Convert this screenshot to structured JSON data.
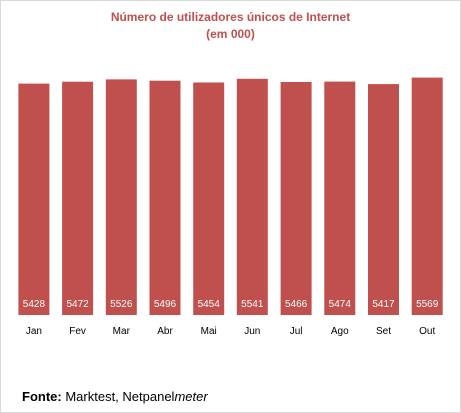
{
  "chart_data": {
    "type": "bar",
    "title": "Número de utilizadores únicos de Internet",
    "subtitle": "(em 000)",
    "categories": [
      "Jan",
      "Fev",
      "Mar",
      "Abr",
      "Mai",
      "Jun",
      "Jul",
      "Ago",
      "Set",
      "Out"
    ],
    "values": [
      5428,
      5472,
      5526,
      5496,
      5454,
      5541,
      5466,
      5474,
      5417,
      5569
    ],
    "data_labels": [
      "5428",
      "5472",
      "5526",
      "5496",
      "5454",
      "5541",
      "5466",
      "5474",
      "5417",
      "5569"
    ],
    "ylim": [
      0,
      5700
    ],
    "grid": false,
    "legend": "none",
    "bar_color": "#c0504d",
    "label_color": "#ffffff"
  },
  "source": {
    "label": "Fonte:",
    "text": "Marktest, Netpanel",
    "italic": "meter"
  }
}
